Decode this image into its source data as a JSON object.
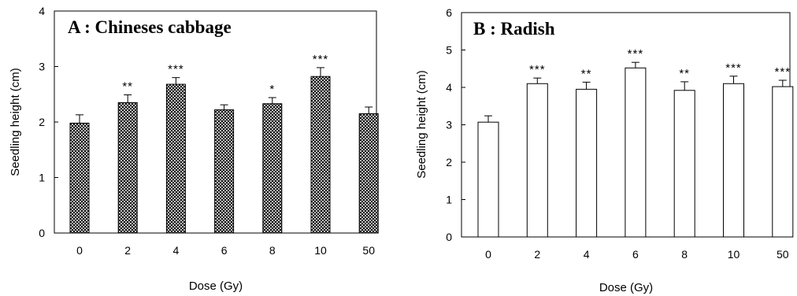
{
  "chart_data": [
    {
      "type": "bar",
      "title": "A : Chineses cabbage",
      "xlabel": "Dose (Gy)",
      "ylabel": "Seedling height (cm)",
      "categories": [
        "0",
        "2",
        "4",
        "6",
        "8",
        "10",
        "50"
      ],
      "values": [
        1.98,
        2.35,
        2.68,
        2.22,
        2.33,
        2.82,
        2.15
      ],
      "errors": [
        0.15,
        0.14,
        0.12,
        0.09,
        0.11,
        0.16,
        0.12
      ],
      "significance": [
        "",
        "**",
        "***",
        "",
        "*",
        "***",
        ""
      ],
      "ylim": [
        0,
        4
      ],
      "yticks": [
        "0",
        "1",
        "2",
        "3",
        "4"
      ],
      "bar_fill": "crosshatch",
      "grid": false
    },
    {
      "type": "bar",
      "title": "B : Radish",
      "xlabel": "Dose (Gy)",
      "ylabel": "Seedling height (cm)",
      "categories": [
        "0",
        "2",
        "4",
        "6",
        "8",
        "10",
        "50"
      ],
      "values": [
        3.07,
        4.1,
        3.95,
        4.52,
        3.92,
        4.1,
        4.02
      ],
      "errors": [
        0.17,
        0.15,
        0.19,
        0.15,
        0.23,
        0.2,
        0.17
      ],
      "significance": [
        "",
        "***",
        "**",
        "***",
        "**",
        "***",
        "***"
      ],
      "ylim": [
        0,
        6
      ],
      "yticks": [
        "0",
        "1",
        "2",
        "3",
        "4",
        "5",
        "6"
      ],
      "bar_fill": "white",
      "grid": false
    }
  ]
}
